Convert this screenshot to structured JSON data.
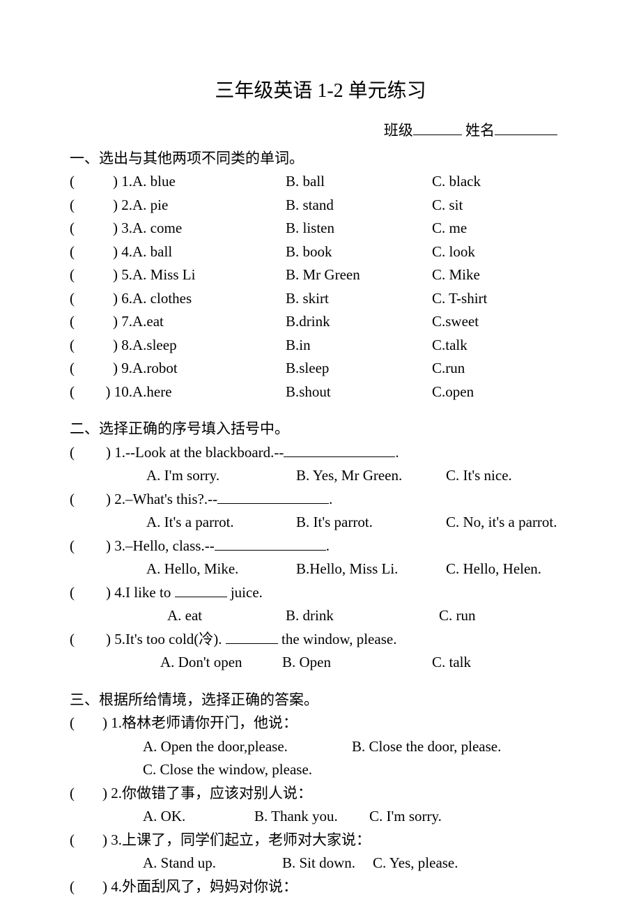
{
  "title": "三年级英语 1-2 单元练习",
  "header": {
    "class_label": "班级",
    "name_label": "姓名"
  },
  "section1": {
    "title": "一、选出与其他两项不同类的单词。",
    "questions": [
      {
        "num": "1.",
        "a": "A. blue",
        "b": "B. ball",
        "c": "C. black"
      },
      {
        "num": "2.",
        "a": "A. pie",
        "b": "B. stand",
        "c": "C. sit"
      },
      {
        "num": "3.",
        "a": "A. come",
        "b": "B. listen",
        "c": "C. me"
      },
      {
        "num": "4.",
        "a": "A. ball",
        "b": "B. book",
        "c": "C. look"
      },
      {
        "num": "5.",
        "a": "A. Miss Li",
        "b": "B. Mr Green",
        "c": "C. Mike"
      },
      {
        "num": "6.",
        "a": "A. clothes",
        "b": "B. skirt",
        "c": "C. T-shirt"
      },
      {
        "num": "7.",
        "a": "A.eat",
        "b": "B.drink",
        "c": "C.sweet"
      },
      {
        "num": "8.",
        "a": "A.sleep",
        "b": "B.in",
        "c": "C.talk"
      },
      {
        "num": "9.",
        "a": "A.robot",
        "b": "B.sleep",
        "c": "C.run"
      },
      {
        "num": "10.",
        "a": "A.here",
        "b": "B.shout",
        "c": "C.open"
      }
    ]
  },
  "section2": {
    "title": "二、选择正确的序号填入括号中。",
    "questions": [
      {
        "num": "1.",
        "stem_pre": "--Look at the blackboard.--",
        "stem_post": ".",
        "a": "A. I'm sorry.",
        "b": "B. Yes, Mr Green.",
        "c": "C. It's nice."
      },
      {
        "num": "2.",
        "stem_pre": "–What's this?.--",
        "stem_post": ".",
        "a": "A. It's a parrot.",
        "b": "B. It's parrot.",
        "c": "C. No, it's a parrot."
      },
      {
        "num": "3.",
        "stem_pre": "–Hello, class.--",
        "stem_post": ".",
        "a": "A. Hello, Mike.",
        "b": "B.Hello, Miss Li.",
        "c": "C. Hello, Helen."
      },
      {
        "num": "4.",
        "stem_pre": "I like to ",
        "stem_post": " juice.",
        "a": "A. eat",
        "b": "B. drink",
        "c": "C. run"
      },
      {
        "num": "5.",
        "stem_pre": "It's too cold(冷). ",
        "stem_post": " the window, please.",
        "a": "A. Don't open",
        "b": "B. Open",
        "c": "C. talk"
      }
    ]
  },
  "section3": {
    "title": "三、根据所给情境，选择正确的答案。",
    "questions": [
      {
        "num": "1.",
        "stem": "格林老师请你开门，他说：",
        "a": "A. Open the door,please.",
        "b": "B. Close the door, please.",
        "c": "C. Close the window, please."
      },
      {
        "num": "2.",
        "stem": "你做错了事，应该对别人说：",
        "a": "A. OK.",
        "b": "B. Thank you.",
        "c": "C. I'm sorry."
      },
      {
        "num": "3.",
        "stem": "上课了，同学们起立，老师对大家说：",
        "a": "A. Stand up.",
        "b": "B. Sit down.",
        "c": "C. Yes, please."
      },
      {
        "num": "4.",
        "stem": "外面刮风了，妈妈对你说："
      }
    ]
  }
}
